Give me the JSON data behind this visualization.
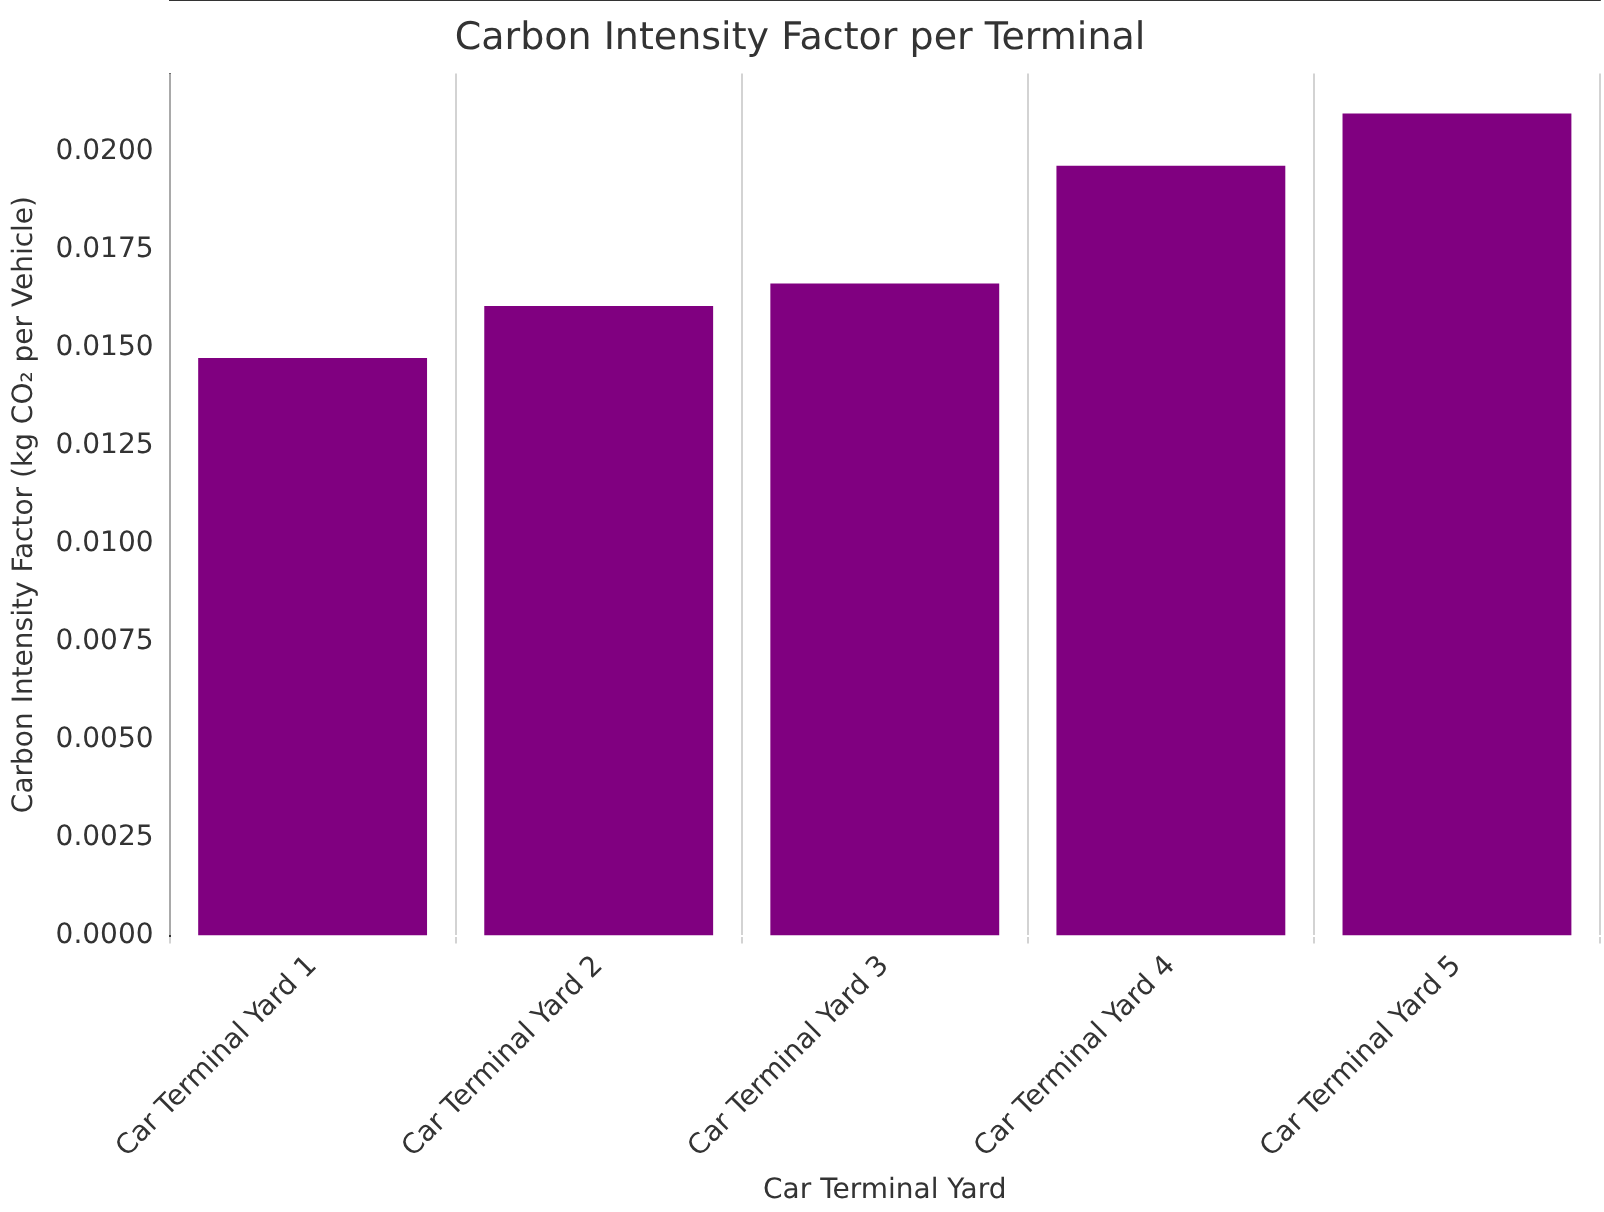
{
  "chart_data": {
    "type": "bar",
    "title": "Carbon Intensity Factor per Terminal",
    "xlabel": "Car Terminal Yard",
    "ylabel": "Carbon Intensity Factor (kg CO₂ per Vehicle)",
    "categories": [
      "Car Terminal Yard 1",
      "Car Terminal Yard 2",
      "Car Terminal Yard 3",
      "Car Terminal Yard 4",
      "Car Terminal Yard 5"
    ],
    "values": [
      0.01474,
      0.01607,
      0.01664,
      0.01965,
      0.02098
    ],
    "color": "#800080",
    "ylim": [
      0,
      0.022
    ],
    "yticks": [
      {
        "value": 0,
        "label": "0.0000"
      },
      {
        "value": 0.0025,
        "label": "0.0025"
      },
      {
        "value": 0.005,
        "label": "0.0050"
      },
      {
        "value": 0.0075,
        "label": "0.0075"
      },
      {
        "value": 0.01,
        "label": "0.0100"
      },
      {
        "value": 0.0125,
        "label": "0.0125"
      },
      {
        "value": 0.015,
        "label": "0.0150"
      },
      {
        "value": 0.0175,
        "label": "0.0175"
      },
      {
        "value": 0.02,
        "label": "0.0200"
      }
    ],
    "grid": "x"
  }
}
